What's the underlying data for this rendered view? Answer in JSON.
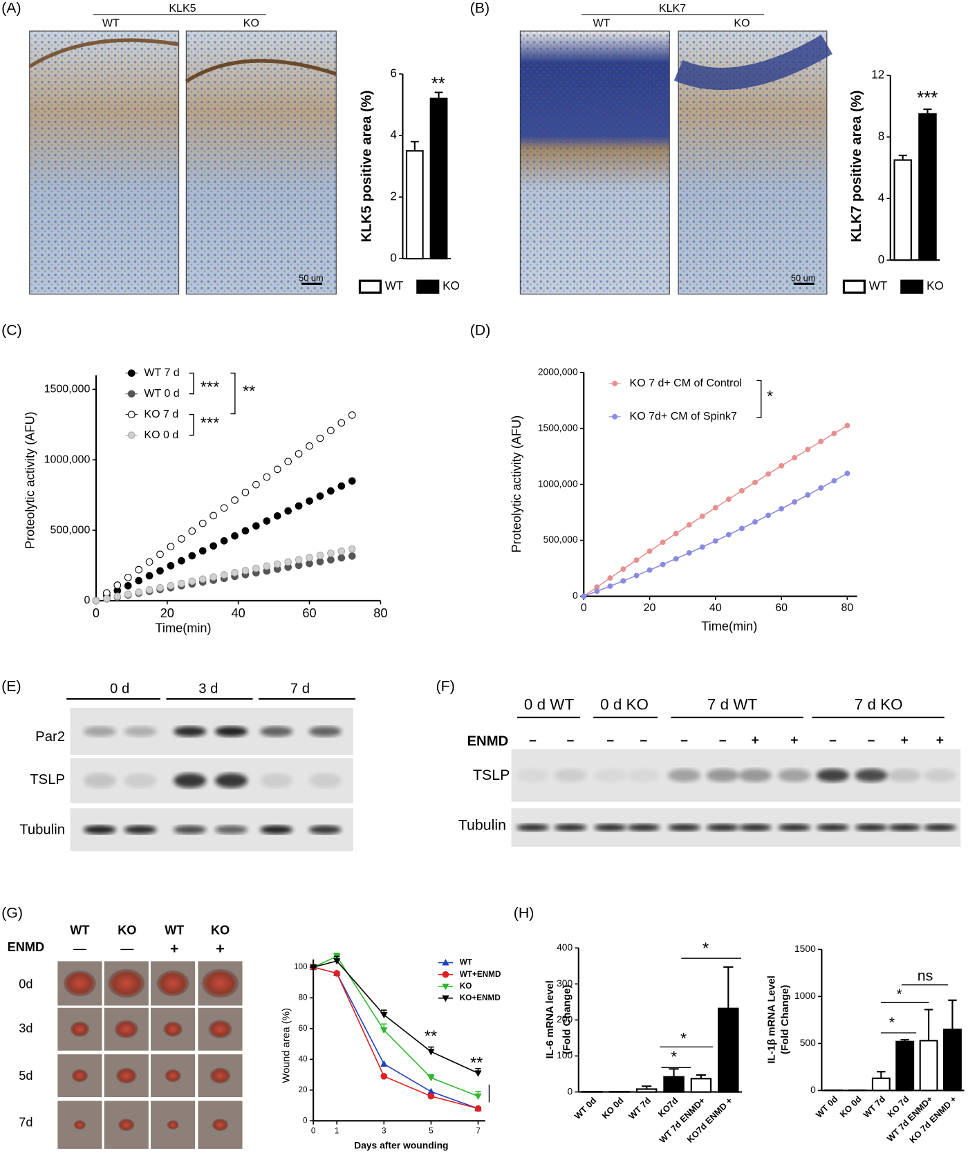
{
  "panel_labels": [
    "(A)",
    "(B)",
    "(C)",
    "(D)",
    "(E)",
    "(F)",
    "(G)",
    "(H)"
  ],
  "panel_a": {
    "group": "KLK5",
    "columns": [
      "WT",
      "KO"
    ],
    "scale_bar": "50 um"
  },
  "panel_b": {
    "group": "KLK7",
    "columns": [
      "WT",
      "KO"
    ],
    "scale_bar": "50 um"
  },
  "panel_e": {
    "columns": [
      "0 d",
      "3 d",
      "7 d"
    ],
    "rows": [
      "Par2",
      "TSLP",
      "Tubulin"
    ]
  },
  "panel_f": {
    "columns": [
      "0 d WT",
      "0 d KO",
      "7 d WT",
      "7 d KO"
    ],
    "treatment": "ENMD",
    "treatment_marks": [
      "–",
      "–",
      "–",
      "–",
      "–",
      "–",
      "+",
      "+",
      "–",
      "–",
      "+",
      "+"
    ],
    "rows": [
      "TSLP",
      "Tubulin"
    ]
  },
  "panel_g_photos": {
    "columns": [
      "WT",
      "KO",
      "WT",
      "KO"
    ],
    "treatment": "ENMD",
    "treatment_marks": [
      "—",
      "—",
      "+",
      "+"
    ],
    "rows": [
      "0d",
      "3d",
      "5d",
      "7d"
    ]
  },
  "chart_data": [
    {
      "type": "bar",
      "ylabel": "KLK5 positive area (%)",
      "categories": [
        "WT",
        "KO"
      ],
      "values": [
        3.5,
        5.2
      ],
      "errors": [
        0.3,
        0.2
      ],
      "colors": [
        "#ffffff",
        "#000000"
      ],
      "ylim": [
        0,
        6
      ],
      "yticks": [
        0,
        2,
        4,
        6
      ],
      "annotations": [
        "**"
      ]
    },
    {
      "type": "bar",
      "ylabel": "KLK7 positive area (%)",
      "categories": [
        "WT",
        "KO"
      ],
      "values": [
        6.5,
        9.5
      ],
      "errors": [
        0.3,
        0.3
      ],
      "colors": [
        "#ffffff",
        "#000000"
      ],
      "ylim": [
        0,
        12
      ],
      "yticks": [
        0,
        4,
        8,
        12
      ],
      "annotations": [
        "***"
      ]
    },
    {
      "type": "scatter",
      "ylabel": "Proteolytic activity (AFU)",
      "xlabel": "Time(min)",
      "x": [
        0,
        3,
        6,
        9,
        12,
        15,
        18,
        21,
        24,
        27,
        30,
        33,
        36,
        39,
        42,
        45,
        48,
        51,
        54,
        57,
        60,
        63,
        66,
        69,
        72
      ],
      "series": [
        {
          "name": "WT 7 d",
          "color": "#000000",
          "marker_fill": "#000000",
          "values": [
            0,
            35000,
            71000,
            106000,
            142000,
            177000,
            212000,
            248000,
            283000,
            319000,
            354000,
            389000,
            425000,
            460000,
            496000,
            531000,
            566000,
            602000,
            637000,
            673000,
            708000,
            743000,
            779000,
            814000,
            850000
          ]
        },
        {
          "name": "WT 0 d",
          "color": "#555555",
          "marker_fill": "#555555",
          "values": [
            0,
            13000,
            26000,
            40000,
            53000,
            66000,
            79000,
            92000,
            106000,
            119000,
            132000,
            145000,
            158000,
            172000,
            185000,
            198000,
            211000,
            224000,
            238000,
            251000,
            264000,
            277000,
            290000,
            304000,
            317000
          ]
        },
        {
          "name": "KO 7 d",
          "color": "#000000",
          "marker_fill": "#ffffff",
          "values": [
            0,
            55000,
            110000,
            165000,
            220000,
            275000,
            329000,
            384000,
            439000,
            494000,
            549000,
            604000,
            659000,
            714000,
            769000,
            824000,
            878000,
            933000,
            988000,
            1043000,
            1098000,
            1153000,
            1208000,
            1263000,
            1318000
          ]
        },
        {
          "name": "KO 0 d",
          "color": "#aaaaaa",
          "marker_fill": "#d0d0d0",
          "values": [
            0,
            15000,
            31000,
            46000,
            61000,
            77000,
            92000,
            107000,
            122000,
            138000,
            153000,
            168000,
            184000,
            199000,
            214000,
            230000,
            245000,
            260000,
            275000,
            291000,
            306000,
            321000,
            337000,
            352000,
            367000
          ]
        }
      ],
      "xlim": [
        0,
        80
      ],
      "xticks": [
        0,
        20,
        40,
        60,
        80
      ],
      "ylim": [
        0,
        1600000
      ],
      "yticks": [
        0,
        {
          "value": 500000,
          "label": "500,000"
        },
        {
          "value": 1000000,
          "label": "1000,000"
        },
        {
          "value": 1500000,
          "label": "1500,000"
        }
      ],
      "annotations": [
        "***",
        "**",
        "***"
      ]
    },
    {
      "type": "line",
      "ylabel": "Proteolytic activity (AFU)",
      "xlabel": "Time(min)",
      "x": [
        0,
        4,
        8,
        12,
        16,
        20,
        24,
        28,
        32,
        36,
        40,
        44,
        48,
        52,
        56,
        60,
        64,
        68,
        72,
        76,
        80
      ],
      "series": [
        {
          "name": "KO 7 d+ CM of Control",
          "color": "#e88f8f",
          "values": [
            0,
            82000,
            163000,
            243000,
            323000,
            403000,
            482000,
            560000,
            638000,
            715000,
            791000,
            867000,
            943000,
            1017000,
            1092000,
            1165000,
            1238000,
            1311000,
            1383000,
            1454000,
            1525000
          ]
        },
        {
          "name": "KO 7d+ CM of Spink7",
          "color": "#8a8ae0",
          "values": [
            0,
            45000,
            90000,
            137000,
            185000,
            234000,
            284000,
            335000,
            387000,
            440000,
            494000,
            550000,
            606000,
            664000,
            723000,
            782000,
            843000,
            905000,
            968000,
            1032000,
            1098000
          ]
        }
      ],
      "xlim": [
        0,
        83
      ],
      "xticks": [
        0,
        20,
        40,
        60,
        80
      ],
      "ylim": [
        0,
        2000000
      ],
      "yticks": [
        0,
        {
          "value": 500000,
          "label": "500,000"
        },
        {
          "value": 1000000,
          "label": "1000,000"
        },
        {
          "value": 1500000,
          "label": "1500,000"
        },
        {
          "value": 2000000,
          "label": "2000,000"
        }
      ],
      "annotations": [
        "*"
      ]
    },
    {
      "type": "line",
      "ylabel": "Wound area (%)",
      "xlabel": "Days after wounding",
      "x": [
        0,
        1,
        3,
        5,
        7
      ],
      "series": [
        {
          "name": "WT",
          "color": "#1f3fbf",
          "marker": "triangle",
          "values": [
            100,
            96,
            37,
            19,
            8
          ]
        },
        {
          "name": "WT+ENMD",
          "color": "#e02020",
          "marker": "circle",
          "values": [
            100,
            96,
            29,
            16,
            8
          ]
        },
        {
          "name": "KO",
          "color": "#2db82d",
          "marker": "triangle-down",
          "values": [
            100,
            107,
            59,
            28,
            16
          ],
          "errors": [
            0,
            2,
            4,
            2,
            3
          ]
        },
        {
          "name": "KO+ENMD",
          "color": "#000000",
          "marker": "triangle-down",
          "values": [
            100,
            104,
            69,
            45,
            31
          ],
          "errors": [
            0,
            3,
            3,
            3,
            3
          ]
        }
      ],
      "xlim": [
        0,
        7.3
      ],
      "xticks": [
        0,
        1,
        3,
        5,
        7
      ],
      "ylim": [
        0,
        105
      ],
      "yticks": [
        0,
        20,
        40,
        60,
        80,
        100
      ],
      "annotations": [
        "**",
        "**"
      ]
    },
    {
      "type": "bar",
      "ylabel": [
        "IL-6 mRNA level",
        "(Fold Change)"
      ],
      "categories": [
        "WT 0d",
        "KO 0d",
        "WT 7d",
        "KO7d",
        "WT 7d ENMD+",
        "KO7d ENMD +"
      ],
      "values": [
        1,
        1,
        8,
        42,
        37,
        232
      ],
      "errors": [
        0,
        0,
        8,
        22,
        10,
        115
      ],
      "colors": [
        "#ffffff",
        "#000000",
        "#ffffff",
        "#000000",
        "#ffffff",
        "#000000"
      ],
      "ylim": [
        0,
        400
      ],
      "yticks": [
        0,
        100,
        200,
        300,
        400
      ],
      "annotations": [
        "*",
        "*",
        "*"
      ]
    },
    {
      "type": "bar",
      "ylabel": [
        "IL-1β mRNA Level",
        "(Fold Change)"
      ],
      "categories": [
        "WT 0d",
        "KO 0d",
        "WT 7d",
        "KO 7d",
        "WT 7d ENMD+",
        "KO 7d ENMD +"
      ],
      "values": [
        3,
        3,
        130,
        520,
        530,
        650
      ],
      "errors": [
        0,
        0,
        70,
        20,
        330,
        310
      ],
      "colors": [
        "#ffffff",
        "#000000",
        "#ffffff",
        "#000000",
        "#ffffff",
        "#000000"
      ],
      "ylim": [
        0,
        1500
      ],
      "yticks": [
        0,
        500,
        1000,
        1500
      ],
      "annotations": [
        "*",
        "*",
        "ns"
      ]
    }
  ]
}
